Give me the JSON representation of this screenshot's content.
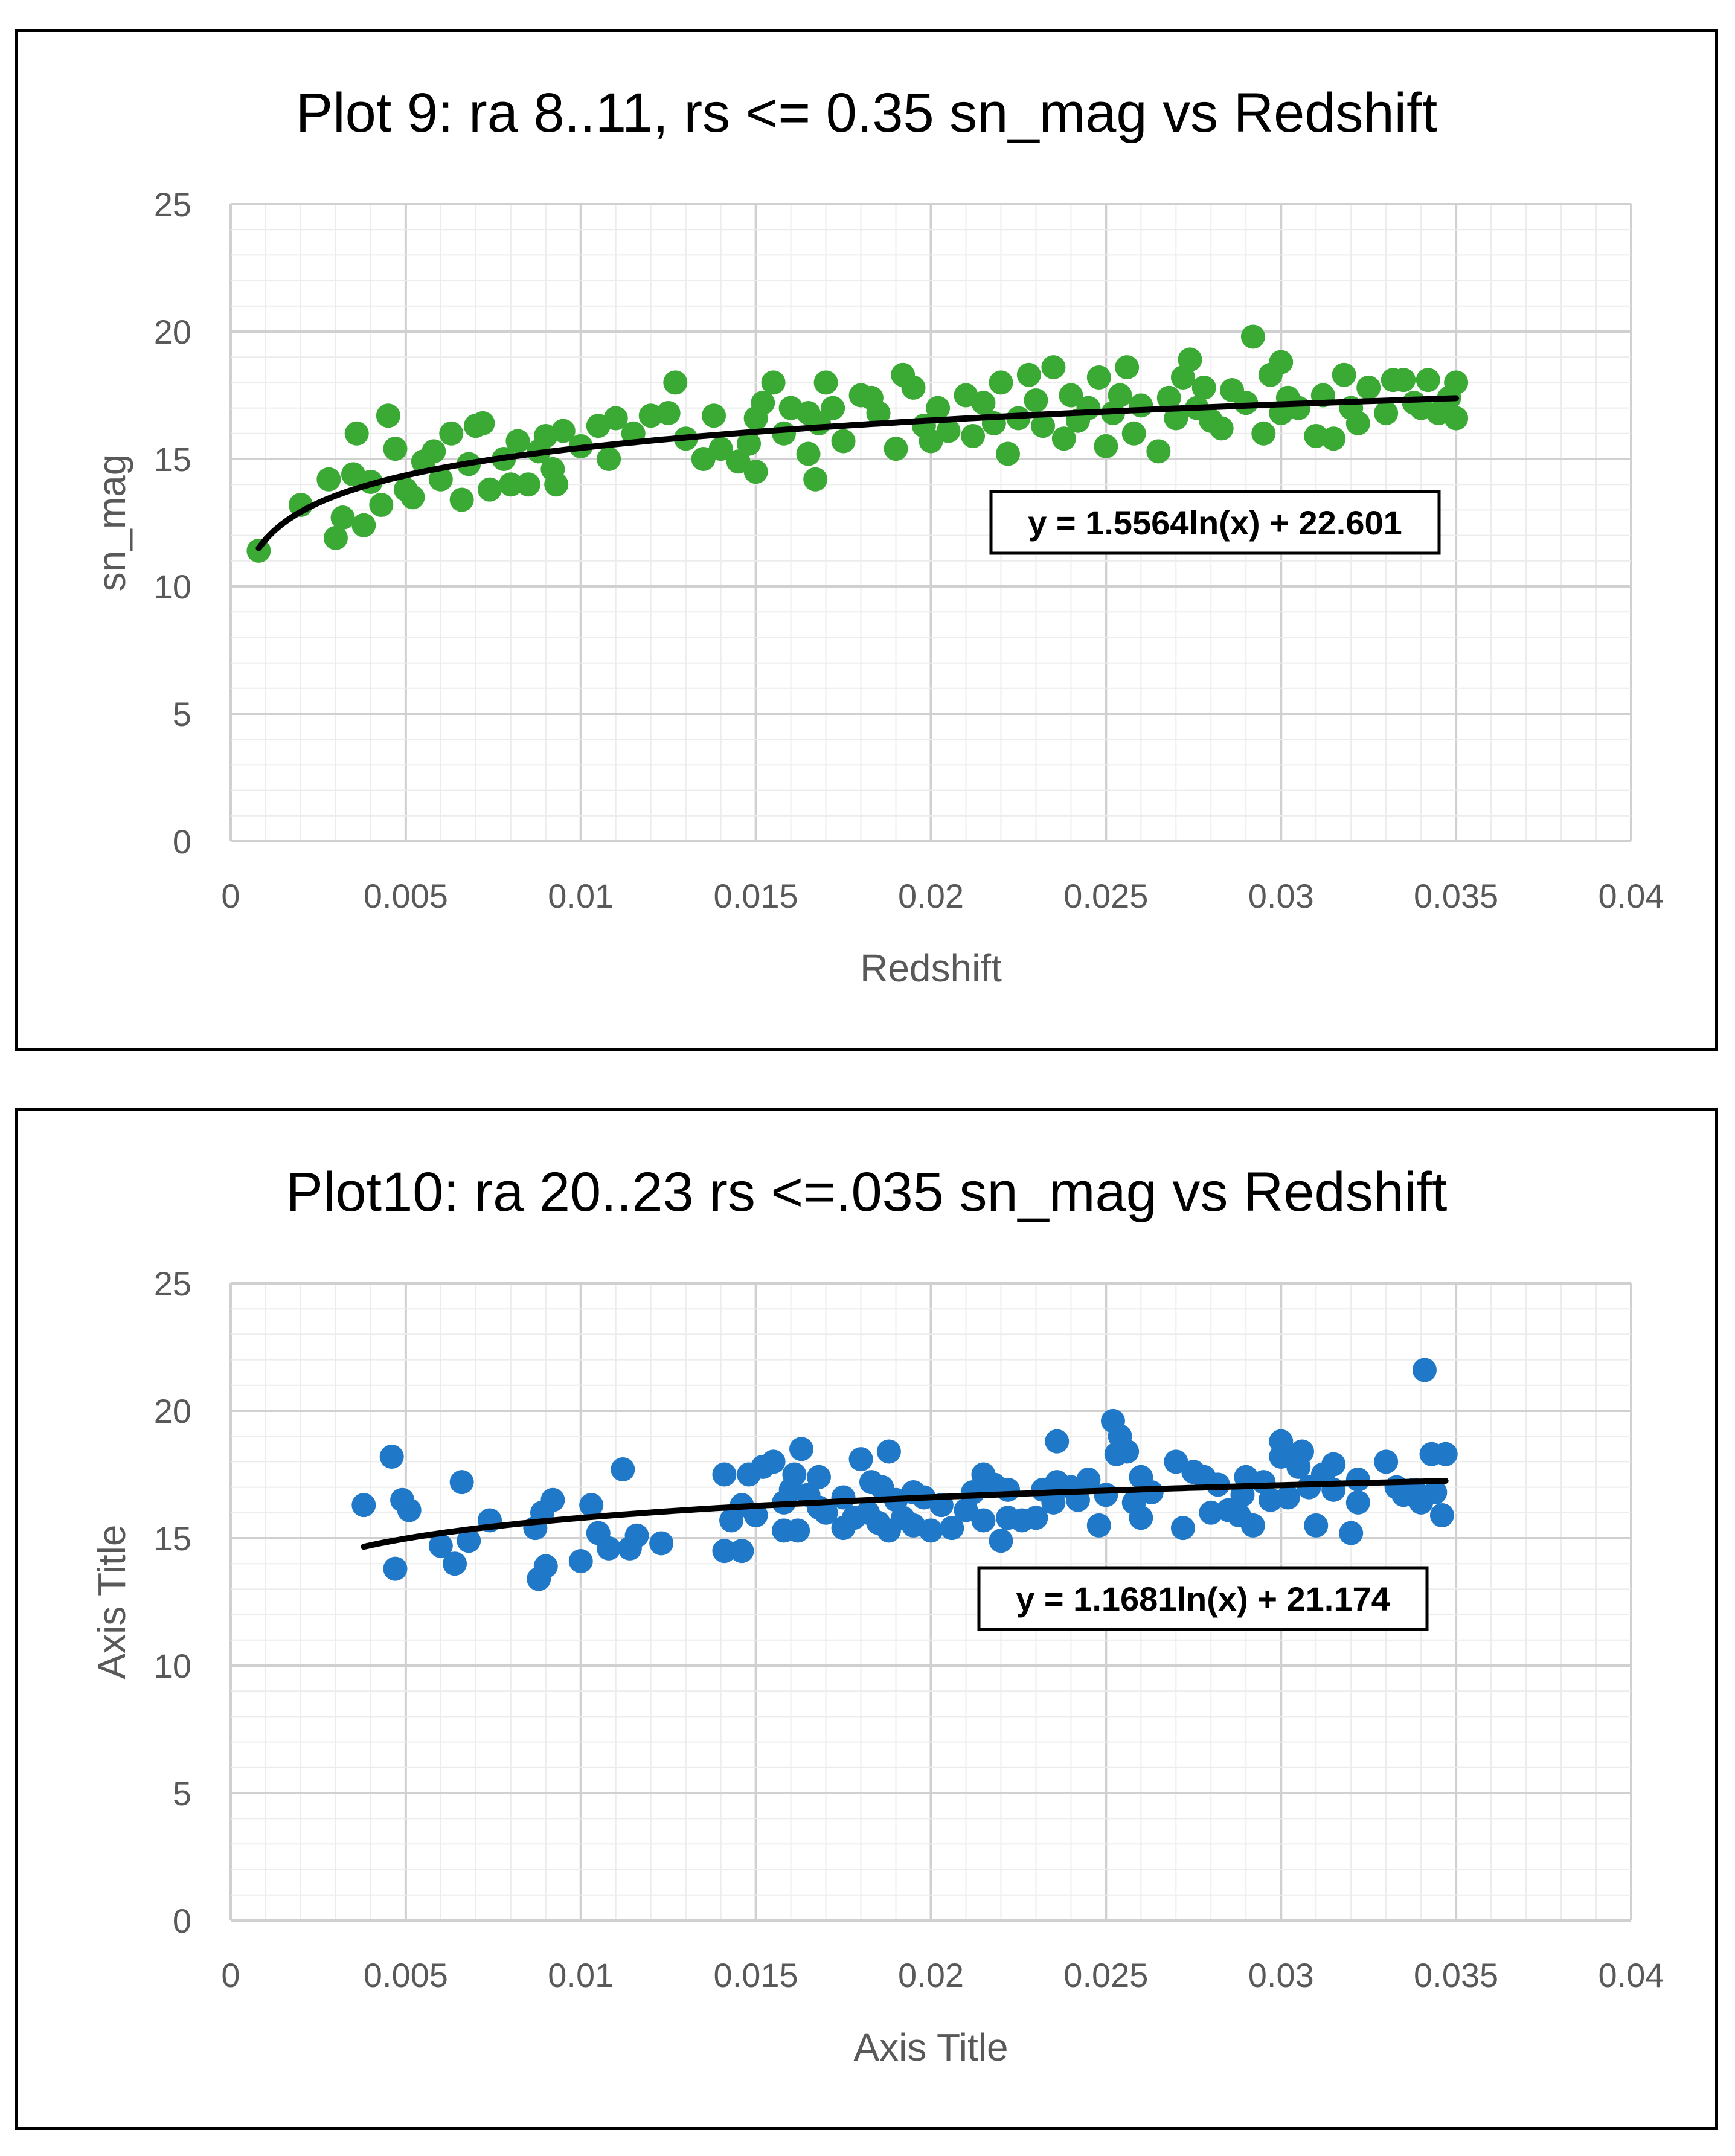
{
  "chart_data": [
    {
      "type": "scatter",
      "title": "Plot 9: ra 8..11, rs <= 0.35 sn_mag vs Redshift",
      "xlabel": "Redshift",
      "ylabel": "sn_mag",
      "xlim": [
        0,
        0.04
      ],
      "ylim": [
        0,
        25
      ],
      "xticks": [
        0,
        0.005,
        0.01,
        0.015,
        0.02,
        0.025,
        0.03,
        0.035,
        0.04
      ],
      "xtick_labels": [
        "0",
        "0.005",
        "0.01",
        "0.015",
        "0.02",
        "0.025",
        "0.03",
        "0.035",
        "0.04"
      ],
      "yticks": [
        0,
        5,
        10,
        15,
        20,
        25
      ],
      "ytick_labels": [
        "0",
        "5",
        "10",
        "15",
        "20",
        "25"
      ],
      "grid": true,
      "marker_color": "#3aaa35",
      "trendline": {
        "type": "logarithmic",
        "a": 1.5564,
        "b": 22.601,
        "x_start": 0.0008,
        "x_end": 0.035,
        "color": "#000000",
        "equation": "y = 1.5564ln(x) + 22.601"
      },
      "series": [
        {
          "points": [
            [
              0.0008,
              11.4
            ],
            [
              0.002,
              13.2
            ],
            [
              0.0028,
              14.2
            ],
            [
              0.003,
              11.9
            ],
            [
              0.0032,
              12.7
            ],
            [
              0.0035,
              14.4
            ],
            [
              0.0036,
              16.0
            ],
            [
              0.0038,
              12.4
            ],
            [
              0.004,
              14.1
            ],
            [
              0.0043,
              13.2
            ],
            [
              0.0045,
              16.7
            ],
            [
              0.0047,
              15.4
            ],
            [
              0.005,
              13.8
            ],
            [
              0.0052,
              13.5
            ],
            [
              0.0055,
              14.9
            ],
            [
              0.0058,
              15.3
            ],
            [
              0.006,
              14.2
            ],
            [
              0.0063,
              16.0
            ],
            [
              0.0066,
              13.4
            ],
            [
              0.0068,
              14.8
            ],
            [
              0.007,
              16.3
            ],
            [
              0.0072,
              16.4
            ],
            [
              0.0074,
              13.8
            ],
            [
              0.0078,
              15.0
            ],
            [
              0.008,
              14.0
            ],
            [
              0.0082,
              15.7
            ],
            [
              0.0085,
              14.0
            ],
            [
              0.0088,
              15.3
            ],
            [
              0.009,
              15.9
            ],
            [
              0.0092,
              14.6
            ],
            [
              0.0093,
              14.0
            ],
            [
              0.0095,
              16.1
            ],
            [
              0.01,
              15.5
            ],
            [
              0.0105,
              16.3
            ],
            [
              0.0108,
              15.0
            ],
            [
              0.011,
              16.6
            ],
            [
              0.0115,
              16.0
            ],
            [
              0.012,
              16.7
            ],
            [
              0.0125,
              16.8
            ],
            [
              0.0127,
              18.0
            ],
            [
              0.013,
              15.8
            ],
            [
              0.0135,
              15.0
            ],
            [
              0.0138,
              16.7
            ],
            [
              0.014,
              15.4
            ],
            [
              0.0145,
              14.9
            ],
            [
              0.0148,
              15.6
            ],
            [
              0.015,
              14.5
            ],
            [
              0.015,
              16.6
            ],
            [
              0.0152,
              17.2
            ],
            [
              0.0155,
              18.0
            ],
            [
              0.0158,
              16.0
            ],
            [
              0.016,
              17.0
            ],
            [
              0.0165,
              16.8
            ],
            [
              0.0165,
              15.2
            ],
            [
              0.0167,
              14.2
            ],
            [
              0.0168,
              16.4
            ],
            [
              0.017,
              18.0
            ],
            [
              0.0172,
              17.0
            ],
            [
              0.0175,
              15.7
            ],
            [
              0.018,
              17.5
            ],
            [
              0.0183,
              17.4
            ],
            [
              0.0185,
              16.8
            ],
            [
              0.019,
              15.4
            ],
            [
              0.0192,
              18.3
            ],
            [
              0.0195,
              17.8
            ],
            [
              0.0198,
              16.3
            ],
            [
              0.02,
              15.7
            ],
            [
              0.0202,
              17.0
            ],
            [
              0.0205,
              16.1
            ],
            [
              0.021,
              17.5
            ],
            [
              0.0212,
              15.9
            ],
            [
              0.0215,
              17.2
            ],
            [
              0.0218,
              16.4
            ],
            [
              0.022,
              18.0
            ],
            [
              0.0222,
              15.2
            ],
            [
              0.0225,
              16.6
            ],
            [
              0.0228,
              18.3
            ],
            [
              0.023,
              17.3
            ],
            [
              0.0232,
              16.3
            ],
            [
              0.0235,
              18.6
            ],
            [
              0.0238,
              15.8
            ],
            [
              0.024,
              17.5
            ],
            [
              0.0242,
              16.5
            ],
            [
              0.0245,
              17.0
            ],
            [
              0.0248,
              18.2
            ],
            [
              0.025,
              15.5
            ],
            [
              0.0252,
              16.8
            ],
            [
              0.0254,
              17.5
            ],
            [
              0.0256,
              18.6
            ],
            [
              0.0258,
              16.0
            ],
            [
              0.026,
              17.1
            ],
            [
              0.0265,
              15.3
            ],
            [
              0.0268,
              17.4
            ],
            [
              0.027,
              16.6
            ],
            [
              0.0272,
              18.2
            ],
            [
              0.0274,
              18.9
            ],
            [
              0.0276,
              17.0
            ],
            [
              0.0278,
              17.8
            ],
            [
              0.028,
              16.5
            ],
            [
              0.0283,
              16.2
            ],
            [
              0.0286,
              17.7
            ],
            [
              0.029,
              17.2
            ],
            [
              0.0292,
              19.8
            ],
            [
              0.0295,
              16.0
            ],
            [
              0.0297,
              18.3
            ],
            [
              0.03,
              18.8
            ],
            [
              0.03,
              16.8
            ],
            [
              0.0302,
              17.4
            ],
            [
              0.0305,
              17.0
            ],
            [
              0.031,
              15.9
            ],
            [
              0.0312,
              17.5
            ],
            [
              0.0315,
              15.8
            ],
            [
              0.0318,
              18.3
            ],
            [
              0.032,
              17.0
            ],
            [
              0.0322,
              16.4
            ],
            [
              0.0325,
              17.8
            ],
            [
              0.033,
              16.8
            ],
            [
              0.0332,
              18.1
            ],
            [
              0.0335,
              18.1
            ],
            [
              0.0338,
              17.2
            ],
            [
              0.034,
              17.0
            ],
            [
              0.0342,
              18.1
            ],
            [
              0.0345,
              16.8
            ],
            [
              0.0348,
              17.4
            ],
            [
              0.035,
              16.6
            ],
            [
              0.035,
              18.0
            ]
          ]
        }
      ]
    },
    {
      "type": "scatter",
      "title": "Plot10: ra 20..23 rs <=.035 sn_mag vs Redshift",
      "xlabel": "Axis Title",
      "ylabel": "Axis Title",
      "xlim": [
        0,
        0.04
      ],
      "ylim": [
        0,
        25
      ],
      "xticks": [
        0,
        0.005,
        0.01,
        0.015,
        0.02,
        0.025,
        0.03,
        0.035,
        0.04
      ],
      "xtick_labels": [
        "0",
        "0.005",
        "0.01",
        "0.015",
        "0.02",
        "0.025",
        "0.03",
        "0.035",
        "0.04"
      ],
      "yticks": [
        0,
        5,
        10,
        15,
        20,
        25
      ],
      "ytick_labels": [
        "0",
        "5",
        "10",
        "15",
        "20",
        "25"
      ],
      "grid": true,
      "marker_color": "#1f78c8",
      "trendline": {
        "type": "logarithmic",
        "a": 1.1681,
        "b": 21.174,
        "x_start": 0.0038,
        "x_end": 0.0347,
        "color": "#000000",
        "equation": "y = 1.1681ln(x) + 21.174"
      },
      "series": [
        {
          "points": [
            [
              0.0038,
              16.3
            ],
            [
              0.0046,
              18.2
            ],
            [
              0.0047,
              13.8
            ],
            [
              0.0049,
              16.5
            ],
            [
              0.0051,
              16.1
            ],
            [
              0.006,
              14.7
            ],
            [
              0.0064,
              14.0
            ],
            [
              0.0066,
              17.2
            ],
            [
              0.0068,
              14.9
            ],
            [
              0.0074,
              15.7
            ],
            [
              0.0087,
              15.4
            ],
            [
              0.0088,
              13.4
            ],
            [
              0.0089,
              16.0
            ],
            [
              0.009,
              13.9
            ],
            [
              0.0092,
              16.5
            ],
            [
              0.01,
              14.1
            ],
            [
              0.0103,
              16.3
            ],
            [
              0.0105,
              15.2
            ],
            [
              0.0108,
              14.6
            ],
            [
              0.0112,
              17.7
            ],
            [
              0.0114,
              14.6
            ],
            [
              0.0116,
              15.1
            ],
            [
              0.0123,
              14.8
            ],
            [
              0.0141,
              17.5
            ],
            [
              0.0141,
              14.5
            ],
            [
              0.0143,
              15.7
            ],
            [
              0.0146,
              16.3
            ],
            [
              0.0146,
              14.5
            ],
            [
              0.0148,
              17.5
            ],
            [
              0.015,
              15.9
            ],
            [
              0.0152,
              17.8
            ],
            [
              0.0155,
              18.0
            ],
            [
              0.0158,
              16.4
            ],
            [
              0.0158,
              15.3
            ],
            [
              0.016,
              16.9
            ],
            [
              0.0161,
              17.5
            ],
            [
              0.0162,
              15.3
            ],
            [
              0.0163,
              18.5
            ],
            [
              0.0165,
              16.7
            ],
            [
              0.0168,
              16.2
            ],
            [
              0.0168,
              17.4
            ],
            [
              0.017,
              16.0
            ],
            [
              0.0175,
              16.6
            ],
            [
              0.0175,
              15.4
            ],
            [
              0.0178,
              15.8
            ],
            [
              0.018,
              18.1
            ],
            [
              0.0182,
              16.0
            ],
            [
              0.0183,
              17.2
            ],
            [
              0.0185,
              15.6
            ],
            [
              0.0186,
              17.0
            ],
            [
              0.0188,
              18.4
            ],
            [
              0.0188,
              15.3
            ],
            [
              0.019,
              16.5
            ],
            [
              0.0192,
              15.8
            ],
            [
              0.0195,
              16.8
            ],
            [
              0.0195,
              15.5
            ],
            [
              0.0198,
              16.6
            ],
            [
              0.02,
              15.3
            ],
            [
              0.0203,
              16.3
            ],
            [
              0.0206,
              15.4
            ],
            [
              0.021,
              16.1
            ],
            [
              0.0212,
              16.8
            ],
            [
              0.0215,
              17.5
            ],
            [
              0.0215,
              15.7
            ],
            [
              0.0218,
              17.1
            ],
            [
              0.022,
              14.9
            ],
            [
              0.0222,
              16.9
            ],
            [
              0.0222,
              15.8
            ],
            [
              0.0226,
              15.7
            ],
            [
              0.023,
              15.8
            ],
            [
              0.0232,
              16.9
            ],
            [
              0.0235,
              16.4
            ],
            [
              0.0236,
              18.8
            ],
            [
              0.0236,
              17.2
            ],
            [
              0.024,
              17.0
            ],
            [
              0.0242,
              16.5
            ],
            [
              0.0245,
              17.3
            ],
            [
              0.0248,
              15.5
            ],
            [
              0.025,
              16.7
            ],
            [
              0.0252,
              19.6
            ],
            [
              0.0253,
              18.3
            ],
            [
              0.0254,
              19.0
            ],
            [
              0.0256,
              18.4
            ],
            [
              0.0258,
              16.4
            ],
            [
              0.026,
              17.4
            ],
            [
              0.026,
              15.8
            ],
            [
              0.0263,
              16.8
            ],
            [
              0.027,
              18.0
            ],
            [
              0.0272,
              15.4
            ],
            [
              0.0275,
              17.6
            ],
            [
              0.0278,
              17.4
            ],
            [
              0.028,
              16.0
            ],
            [
              0.0282,
              17.1
            ],
            [
              0.0285,
              16.1
            ],
            [
              0.0288,
              15.9
            ],
            [
              0.0289,
              16.7
            ],
            [
              0.029,
              17.4
            ],
            [
              0.0292,
              15.5
            ],
            [
              0.0295,
              17.2
            ],
            [
              0.0297,
              16.5
            ],
            [
              0.03,
              18.8
            ],
            [
              0.03,
              18.2
            ],
            [
              0.0302,
              16.6
            ],
            [
              0.0305,
              17.8
            ],
            [
              0.0306,
              18.4
            ],
            [
              0.0308,
              17.0
            ],
            [
              0.031,
              15.5
            ],
            [
              0.0312,
              17.5
            ],
            [
              0.0315,
              17.9
            ],
            [
              0.0315,
              16.9
            ],
            [
              0.032,
              15.2
            ],
            [
              0.0322,
              17.3
            ],
            [
              0.0322,
              16.4
            ],
            [
              0.033,
              18.0
            ],
            [
              0.0333,
              17.0
            ],
            [
              0.0335,
              16.7
            ],
            [
              0.0338,
              16.9
            ],
            [
              0.034,
              16.4
            ],
            [
              0.0341,
              21.6
            ],
            [
              0.0343,
              18.3
            ],
            [
              0.0344,
              16.8
            ],
            [
              0.0346,
              15.9
            ],
            [
              0.0347,
              18.3
            ]
          ]
        }
      ]
    }
  ]
}
